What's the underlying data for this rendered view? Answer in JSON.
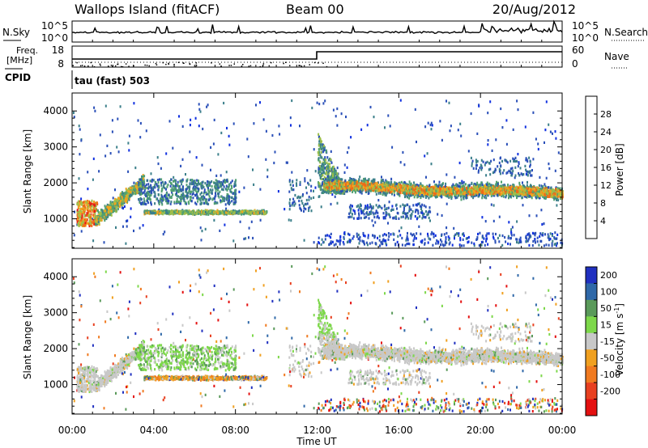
{
  "header": {
    "title": "Wallops Island (fitACF)",
    "beam": "Beam 00",
    "date": "20/Aug/2012"
  },
  "top_panel": {
    "left_label": "N.Sky",
    "left_ticks": [
      "10^5",
      "10^0"
    ],
    "right_label": "N.Search",
    "right_ticks": [
      "10^5",
      "10^0"
    ]
  },
  "freq_panel": {
    "left_label_1": "Freq.",
    "left_label_2": "[MHz]",
    "left_ticks": [
      "18",
      "8"
    ],
    "right_label": "Nave",
    "right_ticks": [
      "60",
      "0"
    ]
  },
  "cpid": {
    "label": "CPID",
    "value": "tau (fast) 503"
  },
  "chart_data": [
    {
      "type": "heatmap",
      "name": "Power",
      "ylabel": "Slant Range [km]",
      "ylim": [
        180,
        4500
      ],
      "yticks": [
        "1000",
        "2000",
        "3000",
        "4000"
      ],
      "colorbar": {
        "label": "Power [dB]",
        "ticks": [
          "4",
          "8",
          "12",
          "16",
          "20",
          "24",
          "28"
        ],
        "colors": [
          "#1030e0",
          "#2a4fb8",
          "#3b7f8a",
          "#50a070",
          "#9ec04a",
          "#f2a41f",
          "#ef6a18",
          "#e41a1a"
        ]
      }
    },
    {
      "type": "heatmap",
      "name": "Velocity",
      "ylabel": "Slant Range [km]",
      "ylim": [
        180,
        4500
      ],
      "yticks": [
        "1000",
        "2000",
        "3000",
        "4000"
      ],
      "colorbar": {
        "label": "Velocity [m s",
        "label_sup": "-1",
        "label_end": "]",
        "ticks": [
          "200",
          "100",
          "50",
          "15",
          "-15",
          "-50",
          "-100",
          "-200"
        ],
        "colors": [
          "#2030c0",
          "#2f68a8",
          "#5a9a5a",
          "#7dd84a",
          "#c8c8c8",
          "#f0a020",
          "#f07a20",
          "#e84020",
          "#e41010"
        ]
      }
    }
  ],
  "x_axis": {
    "ticks": [
      "00:00",
      "04:00",
      "08:00",
      "12:00",
      "16:00",
      "20:00",
      "00:00"
    ],
    "label": "Time UT"
  }
}
